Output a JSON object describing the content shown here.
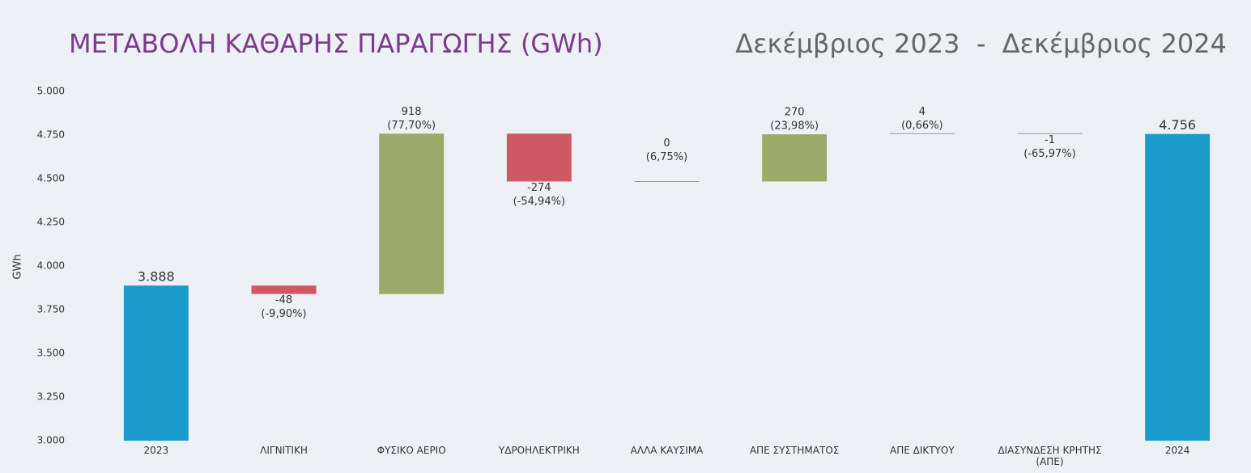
{
  "chart_data": {
    "type": "waterfall",
    "title": "ΜΕΤΑΒΟΛΗ ΚΑΘΑΡΗΣ ΠΑΡΑΓΩΓΗΣ (GWh)",
    "subtitle": "Δεκέμβριος 2023  -  Δεκέμβριος 2024",
    "y_label": "GWh",
    "categories": [
      "2023",
      "ΛΙΓΝΙΤΙΚΗ",
      "ΦΥΣΙΚΟ ΑΕΡΙΟ",
      "ΥΔΡΟΗΛΕΚΤΡΙΚΗ",
      "ΑΛΛΑ ΚΑΥΣΙΜΑ",
      "ΑΠΕ ΣΥΣΤΗΜΑΤΟΣ",
      "ΑΠΕ ΔΙΚΤΥΟΥ",
      "ΔΙΑΣΥΝΔΕΣΗ ΚΡΗΤΗΣ (ΑΠΕ)",
      "2024"
    ],
    "measure": [
      "total",
      "relative",
      "relative",
      "relative",
      "relative",
      "relative",
      "relative",
      "relative",
      "total"
    ],
    "values": [
      3888,
      -48,
      918,
      -274,
      0,
      270,
      4,
      -1,
      4756
    ],
    "value_labels": [
      "3.888",
      "-48",
      "918",
      "-274",
      "0",
      "270",
      "4",
      "-1",
      "4.756"
    ],
    "percent_labels": [
      null,
      "(-9,90%)",
      "(77,70%)",
      "(-54,94%)",
      "(6,75%)",
      "(23,98%)",
      "(0,66%)",
      "(-65,97%)",
      null
    ],
    "colors": {
      "total": "#1b9bcb",
      "increase": "#9caa69",
      "decrease": "#cd5966"
    },
    "ylim": [
      3000,
      5000
    ],
    "yticks": [
      {
        "value": 3000,
        "label": "3.000"
      },
      {
        "value": 3250,
        "label": "3.250"
      },
      {
        "value": 3500,
        "label": "3.500"
      },
      {
        "value": 3750,
        "label": "3.750"
      },
      {
        "value": 4000,
        "label": "4.000"
      },
      {
        "value": 4250,
        "label": "4.250"
      },
      {
        "value": 4500,
        "label": "4.500"
      },
      {
        "value": 4750,
        "label": "4.750"
      },
      {
        "value": 5000,
        "label": "5.000"
      }
    ]
  }
}
